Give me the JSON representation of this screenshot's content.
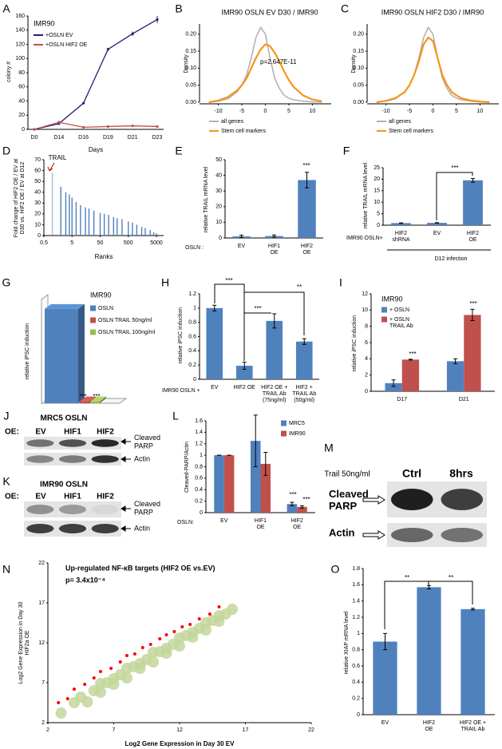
{
  "chart_data": [
    {
      "panel": "A",
      "type": "line",
      "label": "IMR90",
      "categories": [
        "D0",
        "D14",
        "D16",
        "D19",
        "D21",
        "D23"
      ],
      "xlabel": "Days",
      "ylabel": "colony #",
      "ylim": [
        0,
        160
      ],
      "yticks": [
        0,
        20,
        40,
        60,
        80,
        100,
        120,
        140,
        160
      ],
      "series": [
        {
          "name": "+OSLN EV",
          "color": "#1f1f78",
          "values": [
            0,
            8,
            37,
            113,
            135,
            155
          ],
          "errors": [
            0,
            1,
            1,
            2,
            3,
            5
          ]
        },
        {
          "name": "+OSLN HIF2 OE",
          "color": "#c0504d",
          "values": [
            0,
            10,
            3,
            4,
            5,
            4
          ],
          "errors": [
            0,
            2,
            1,
            1,
            1,
            1
          ]
        }
      ]
    },
    {
      "panel": "B",
      "type": "density",
      "title": "IMR90 OSLN EV D30 / IMR90",
      "ylabel": "Density",
      "annotations": [
        "p=2.647E-11"
      ],
      "x": [
        -12,
        -10,
        -8,
        -6,
        -5,
        -4,
        -3,
        -2,
        -1,
        0,
        1,
        2,
        3,
        4,
        5,
        6,
        8,
        10,
        12
      ],
      "xlim": [
        -14,
        14
      ],
      "xticks": [
        -10,
        -5,
        0,
        5,
        10
      ],
      "ylim": [
        0,
        0.23
      ],
      "yticks": [
        {
          "value": 0,
          "label": "0.00"
        },
        {
          "value": 0.05,
          "label": "0.05"
        },
        {
          "value": 0.1,
          "label": "0.10"
        },
        {
          "value": 0.15,
          "label": "0.15"
        },
        {
          "value": 0.2,
          "label": "0.20"
        }
      ],
      "series": [
        {
          "name": "all genes",
          "color": "#b3b3b3",
          "values": [
            0,
            0.003,
            0.01,
            0.03,
            0.05,
            0.08,
            0.13,
            0.19,
            0.22,
            0.2,
            0.13,
            0.07,
            0.04,
            0.02,
            0.012,
            0.007,
            0.003,
            0.001,
            0
          ]
        },
        {
          "name": "Stem cell markers",
          "color": "#f7941d",
          "values": [
            0,
            0.005,
            0.015,
            0.035,
            0.05,
            0.07,
            0.1,
            0.13,
            0.155,
            0.17,
            0.165,
            0.145,
            0.12,
            0.09,
            0.065,
            0.045,
            0.02,
            0.008,
            0.003
          ]
        }
      ]
    },
    {
      "panel": "C",
      "type": "density",
      "title": "IMR90 OSLN HIF2 D30 / IMR90",
      "ylabel": "Density",
      "x": [
        -12,
        -10,
        -8,
        -6,
        -5,
        -4,
        -3,
        -2,
        -1,
        0,
        1,
        2,
        3,
        4,
        5,
        6,
        8,
        10,
        12
      ],
      "xlim": [
        -14,
        14
      ],
      "xticks": [
        -10,
        -5,
        0,
        5,
        10
      ],
      "ylim": [
        0,
        0.23
      ],
      "yticks": [
        {
          "value": 0,
          "label": "0.00"
        },
        {
          "value": 0.05,
          "label": "0.05"
        },
        {
          "value": 0.1,
          "label": "0.10"
        },
        {
          "value": 0.15,
          "label": "0.15"
        },
        {
          "value": 0.2,
          "label": "0.20"
        }
      ],
      "series": [
        {
          "name": "all genes",
          "color": "#b3b3b3",
          "values": [
            0,
            0.003,
            0.01,
            0.03,
            0.05,
            0.08,
            0.13,
            0.19,
            0.22,
            0.2,
            0.13,
            0.07,
            0.04,
            0.02,
            0.012,
            0.007,
            0.003,
            0.001,
            0
          ]
        },
        {
          "name": "Stem cell markers",
          "color": "#f7941d",
          "values": [
            0,
            0.004,
            0.012,
            0.03,
            0.05,
            0.08,
            0.12,
            0.17,
            0.19,
            0.18,
            0.13,
            0.08,
            0.05,
            0.03,
            0.02,
            0.012,
            0.005,
            0.002,
            0
          ]
        }
      ]
    },
    {
      "panel": "D",
      "type": "rank",
      "ylabel": [
        "Fold change of HIF2 OE / EV at",
        "D30 vs. HIF2 OE / EV at D12"
      ],
      "xlabel": "Ranks",
      "annotations": [
        "TRAIL"
      ],
      "xscale": "log",
      "xlim": [
        0.5,
        9000
      ],
      "xticks": [
        0.5,
        5,
        50,
        500,
        5000
      ],
      "ylim": [
        0,
        70
      ],
      "yticks": [
        0,
        10,
        20,
        30,
        40,
        50,
        60,
        70
      ],
      "color": "#4f81bd",
      "x": [
        1,
        2,
        3,
        4,
        5,
        7,
        10,
        15,
        20,
        30,
        50,
        70,
        100,
        150,
        200,
        300,
        500,
        700,
        1000,
        1500,
        2000,
        3000,
        4000,
        5000
      ],
      "values": [
        58,
        45,
        40,
        38,
        35,
        31,
        28,
        26,
        25,
        23,
        21,
        20,
        19,
        17,
        16,
        15,
        13,
        12,
        10,
        8,
        7,
        5,
        3,
        2
      ]
    },
    {
      "panel": "E",
      "type": "bar",
      "ylabel": "relative TRAIL mRNA level",
      "row_label": "OSLN :",
      "categories": [
        "EV",
        [
          "HIF1",
          "OE"
        ],
        [
          "HIF2",
          "OE"
        ]
      ],
      "annotations": [
        "***"
      ],
      "ylim": [
        0,
        50
      ],
      "yticks": [
        0,
        10,
        20,
        30,
        40,
        50
      ],
      "series": [
        {
          "color": "#4f81bd",
          "values": [
            1,
            1.2,
            37
          ],
          "errors": [
            0.8,
            0.7,
            5
          ]
        }
      ]
    },
    {
      "panel": "F",
      "type": "bar",
      "ylabel": "relative TRAIL mRNA level",
      "row_label": "IMR90 OSLN+",
      "note": "D12 infection",
      "categories": [
        [
          "HIF2",
          "shRNA"
        ],
        "EV",
        [
          "HIF2",
          "OE"
        ]
      ],
      "annotations": [
        "***"
      ],
      "ylim": [
        0,
        25
      ],
      "yticks": [
        0,
        5,
        10,
        15,
        20,
        25
      ],
      "series": [
        {
          "color": "#4f81bd",
          "values": [
            0.9,
            1,
            19.5
          ],
          "errors": [
            0.1,
            0.1,
            0.8
          ]
        }
      ]
    },
    {
      "panel": "G",
      "type": "bar3d",
      "label": "IMR90",
      "ylabel": "relative iPSC induction",
      "annotations": [
        "***",
        "***"
      ],
      "ylim": [
        0,
        1.1
      ],
      "series": [
        {
          "name": "OSLN",
          "color": "#4f81bd",
          "values": [
            1
          ]
        },
        {
          "name": "OSLN TRAIL  50ng/ml",
          "color": "#c0504d",
          "values": [
            0.02
          ]
        },
        {
          "name": "OSLN TRAIL  100ng/ml",
          "color": "#9bbb59",
          "values": [
            0.02
          ]
        }
      ]
    },
    {
      "panel": "H",
      "type": "bar",
      "ylabel": "relative iPSC induction",
      "row_label": "IMR90 OSLN +",
      "categories": [
        "EV",
        "HIF2 OE",
        [
          "HIF2 OE +",
          "TRAIL Ab",
          "(75ng/ml)"
        ],
        [
          "HIF2 +",
          "TRAIL Ab",
          "(50g/ml)"
        ]
      ],
      "annotations": [
        "***",
        "***",
        "**"
      ],
      "ylim": [
        0,
        1.2
      ],
      "yticks": [
        0,
        0.2,
        0.4,
        0.6,
        0.8,
        1,
        1.2
      ],
      "series": [
        {
          "color": "#4f81bd",
          "values": [
            1,
            0.19,
            0.82,
            0.53
          ],
          "errors": [
            0.04,
            0.05,
            0.1,
            0.04
          ]
        }
      ]
    },
    {
      "panel": "I",
      "type": "bar",
      "label": "IMR90",
      "ylabel": "relative iPSC induction",
      "categories": [
        "D17",
        "D21"
      ],
      "annotations": [
        "***",
        "***"
      ],
      "ylim": [
        0,
        12
      ],
      "yticks": [
        0,
        2,
        4,
        6,
        8,
        10,
        12
      ],
      "series": [
        {
          "name": "+ OSLN",
          "color": "#4f81bd",
          "values": [
            1,
            3.7
          ],
          "errors": [
            0.4,
            0.3
          ]
        },
        {
          "name": [
            "+ OSLN",
            "TRAIL Ab"
          ],
          "color": "#c0504d",
          "values": [
            3.9,
            9.4
          ],
          "errors": [
            0.05,
            0.7
          ]
        }
      ]
    },
    {
      "panel": "J",
      "type": "blot",
      "header": "MRC5 OSLN",
      "prefix": "OE:",
      "lanes": [
        "EV",
        "HIF1",
        "HIF2"
      ],
      "bands": [
        [
          "Cleaved",
          "PARP"
        ],
        "Actin"
      ]
    },
    {
      "panel": "K",
      "type": "blot",
      "header": "IMR90 OSLN",
      "prefix": "OE:",
      "lanes": [
        "EV",
        "HIF1",
        "HIF2"
      ],
      "bands": [
        [
          "Cleaved",
          "PARP"
        ],
        "Actin"
      ]
    },
    {
      "panel": "L",
      "type": "bar",
      "ylabel": "Cleaved-PARP/Actin",
      "row_label": "OSLN:",
      "categories": [
        "EV",
        [
          "HIF1",
          "OE"
        ],
        [
          "HIF2",
          "OE"
        ]
      ],
      "annotations": [
        "***",
        "***"
      ],
      "ylim": [
        0,
        1.6
      ],
      "yticks": [
        0,
        0.2,
        0.4,
        0.6,
        0.8,
        1,
        1.2,
        1.4,
        1.6
      ],
      "series": [
        {
          "name": "MRC5",
          "color": "#4f81bd",
          "values": [
            1,
            1.25,
            0.15
          ],
          "errors": [
            0,
            0.45,
            0.03
          ]
        },
        {
          "name": "IMR90",
          "color": "#c0504d",
          "values": [
            1,
            0.85,
            0.1
          ],
          "errors": [
            0,
            0.2,
            0.02
          ]
        }
      ]
    },
    {
      "panel": "M",
      "type": "blot",
      "header": "Trail 50ng/ml",
      "lanes": [
        "Ctrl",
        "8hrs"
      ],
      "bands": [
        [
          "Cleaved",
          "PARP"
        ],
        "Actin"
      ]
    },
    {
      "panel": "N",
      "type": "scatter",
      "title": "Up-regulated NF-κB targets (HIF2 OE vs.EV)",
      "annotations": [
        "p= 3.4x10⁻⁴"
      ],
      "xlabel": "Log2 Gene Expression in Day 30 EV",
      "ylabel": [
        "Log2 Gene Expression in Day 30",
        "HIF2a OE"
      ],
      "xlim": [
        2,
        22
      ],
      "xticks": [
        2,
        7,
        12,
        17,
        22
      ],
      "ylim": [
        2,
        22
      ],
      "yticks": [
        2,
        7,
        12,
        17,
        22
      ],
      "series": [
        {
          "color": "#c3d69b",
          "x": [
            3,
            4,
            5,
            5.5,
            6,
            6.5,
            7,
            7.5,
            8,
            8.5,
            9,
            9.5,
            10,
            10.5,
            11,
            11.5,
            12,
            12.5,
            13,
            13.5,
            14,
            14.5,
            15,
            15.5,
            16,
            4.5,
            6,
            7,
            8,
            9,
            10,
            11,
            12,
            13,
            14,
            15
          ],
          "y": [
            3.2,
            4.5,
            4.6,
            6,
            5.8,
            7,
            6.8,
            8,
            7.6,
            9,
            8.8,
            9.9,
            9.6,
            10.9,
            10.7,
            11.8,
            11.6,
            12.9,
            12.7,
            13.8,
            13.6,
            14.8,
            14.7,
            15.6,
            16.2,
            5.2,
            6.9,
            7.5,
            8.8,
            9.4,
            10.8,
            11.3,
            12.6,
            13.3,
            14.5,
            15.4
          ]
        },
        {
          "color": "#ff0000",
          "x": [
            2.8,
            3.5,
            4,
            4.8,
            5.5,
            6,
            6.8,
            7.5,
            8,
            8.6,
            9.2,
            9.8,
            10.5,
            11,
            11.6,
            12.2,
            12.8,
            13.5,
            14.3,
            15
          ],
          "y": [
            4.5,
            5,
            6.2,
            6.8,
            7.6,
            8.4,
            8.8,
            9.6,
            10.4,
            10.6,
            11.4,
            11.8,
            12.5,
            13,
            13.4,
            14,
            14.3,
            15,
            15.6,
            16.5
          ]
        }
      ]
    },
    {
      "panel": "O",
      "type": "bar",
      "ylabel": "relative XIAP mRNA level",
      "categories": [
        "EV",
        [
          "HIF2",
          "OE"
        ],
        [
          "HIF2 OE +",
          "TRAIL Ab"
        ]
      ],
      "annotations": [
        "**",
        "**"
      ],
      "ylim": [
        0,
        1.8
      ],
      "yticks": [
        0,
        0.2,
        0.4,
        0.6,
        0.8,
        1,
        1.2,
        1.4,
        1.6,
        1.8
      ],
      "series": [
        {
          "color": "#4f81bd",
          "values": [
            0.9,
            1.57,
            1.3
          ],
          "errors": [
            0.1,
            0.02,
            0.01
          ]
        }
      ]
    }
  ]
}
